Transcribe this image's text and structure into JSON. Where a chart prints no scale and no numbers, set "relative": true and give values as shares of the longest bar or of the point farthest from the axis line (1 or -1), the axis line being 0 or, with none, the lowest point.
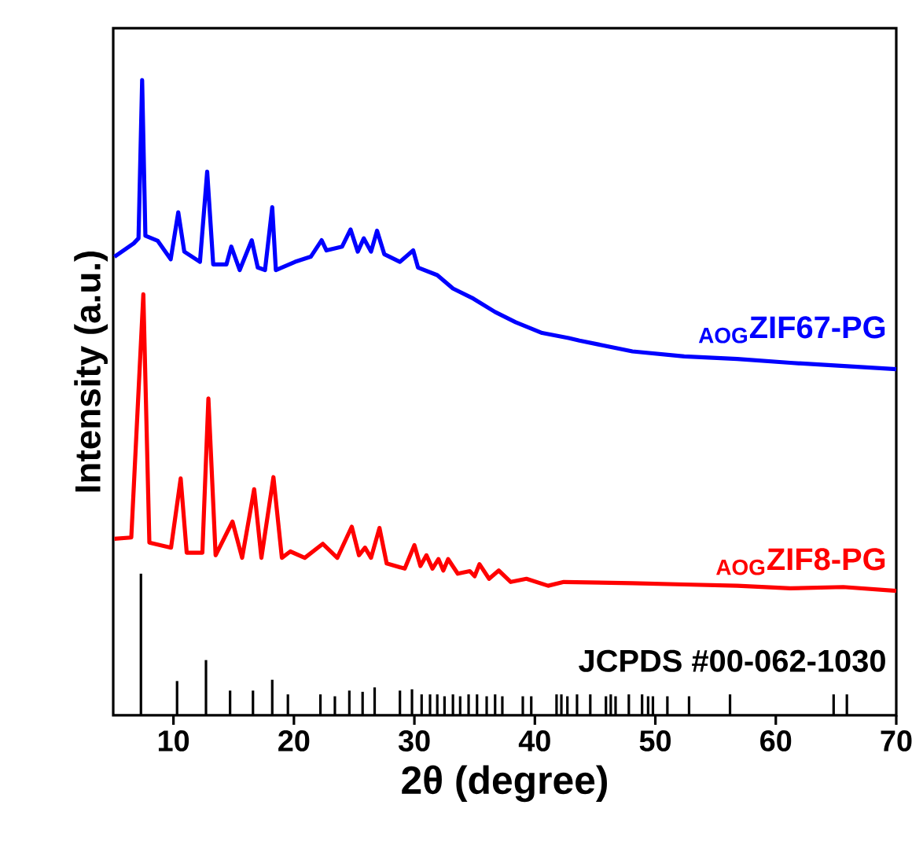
{
  "chart_data": {
    "type": "line",
    "relative": true,
    "xlabel": "2θ (degree)",
    "ylabel": "Intensity (a.u.)",
    "xlim": [
      5,
      70
    ],
    "xticks": [
      10,
      20,
      30,
      40,
      50,
      60,
      70
    ],
    "legend": false,
    "series": [
      {
        "name": "$_{AOG}$ZIF67-PG",
        "color": "#0000ff",
        "x": [
          5.1,
          6.7,
          7.1,
          7.4,
          7.67,
          8.7,
          9.77,
          10.4,
          10.9,
          12.2,
          12.8,
          13.3,
          14.4,
          14.8,
          15.5,
          16.5,
          17.0,
          17.6,
          18.2,
          18.5,
          20.1,
          21.4,
          22.3,
          22.7,
          24.0,
          24.7,
          25.3,
          25.8,
          26.4,
          26.9,
          27.5,
          28.8,
          29.9,
          30.3,
          31.9,
          33.2,
          34.9,
          36.7,
          38.4,
          40.6,
          42.8,
          43.7,
          48.1,
          52.4,
          56.8,
          61.2,
          65.6,
          70.0
        ],
        "values": [
          0.722,
          0.743,
          0.751,
          1.0,
          0.755,
          0.747,
          0.718,
          0.792,
          0.73,
          0.714,
          0.856,
          0.71,
          0.71,
          0.738,
          0.701,
          0.748,
          0.705,
          0.701,
          0.8,
          0.701,
          0.714,
          0.722,
          0.748,
          0.732,
          0.738,
          0.765,
          0.73,
          0.751,
          0.73,
          0.763,
          0.726,
          0.714,
          0.732,
          0.705,
          0.693,
          0.672,
          0.656,
          0.635,
          0.619,
          0.602,
          0.594,
          0.59,
          0.573,
          0.565,
          0.561,
          0.555,
          0.55,
          0.545
        ]
      },
      {
        "name": "$_{AOG}$ZIF8-PG",
        "color": "#ff0000",
        "x": [
          5.1,
          6.5,
          7.5,
          8.0,
          9.8,
          10.6,
          11.1,
          12.4,
          12.9,
          13.5,
          14.9,
          15.7,
          16.7,
          17.3,
          18.3,
          19.0,
          19.7,
          20.9,
          22.4,
          23.6,
          24.8,
          25.4,
          25.9,
          26.4,
          27.1,
          27.7,
          29.2,
          30.0,
          30.5,
          31.0,
          31.5,
          32.0,
          32.4,
          32.8,
          33.6,
          34.6,
          35.0,
          35.4,
          36.2,
          37.0,
          38.0,
          39.3,
          41.1,
          42.4,
          48.1,
          52.4,
          56.8,
          61.2,
          65.6,
          70.0
        ],
        "values": [
          0.278,
          0.28,
          0.663,
          0.272,
          0.264,
          0.373,
          0.256,
          0.256,
          0.499,
          0.252,
          0.305,
          0.248,
          0.356,
          0.248,
          0.375,
          0.248,
          0.258,
          0.248,
          0.27,
          0.248,
          0.297,
          0.252,
          0.264,
          0.248,
          0.295,
          0.239,
          0.231,
          0.268,
          0.235,
          0.252,
          0.231,
          0.246,
          0.228,
          0.246,
          0.223,
          0.227,
          0.219,
          0.238,
          0.215,
          0.228,
          0.21,
          0.215,
          0.204,
          0.21,
          0.208,
          0.206,
          0.204,
          0.2,
          0.202,
          0.196
        ]
      },
      {
        "name": "JCPDS #00-062-1030",
        "color": "#000000",
        "type": "bar",
        "x": [
          7.3,
          10.3,
          12.7,
          14.7,
          16.6,
          18.2,
          19.5,
          22.2,
          23.4,
          24.6,
          25.7,
          26.7,
          28.8,
          29.8,
          30.6,
          31.3,
          31.9,
          32.5,
          33.2,
          33.8,
          34.5,
          35.2,
          36.0,
          36.7,
          37.3,
          39.0,
          39.7,
          41.8,
          42.2,
          42.7,
          43.5,
          44.6,
          45.9,
          46.3,
          46.7,
          47.8,
          48.9,
          49.4,
          49.8,
          51.0,
          52.8,
          56.2,
          64.8,
          65.9
        ],
        "values": [
          0.223,
          0.054,
          0.087,
          0.039,
          0.039,
          0.056,
          0.033,
          0.033,
          0.03,
          0.039,
          0.037,
          0.044,
          0.039,
          0.041,
          0.033,
          0.033,
          0.033,
          0.03,
          0.033,
          0.03,
          0.033,
          0.033,
          0.03,
          0.033,
          0.03,
          0.03,
          0.03,
          0.033,
          0.033,
          0.03,
          0.033,
          0.033,
          0.03,
          0.033,
          0.03,
          0.033,
          0.033,
          0.03,
          0.03,
          0.03,
          0.03,
          0.033,
          0.033,
          0.033
        ]
      }
    ]
  }
}
